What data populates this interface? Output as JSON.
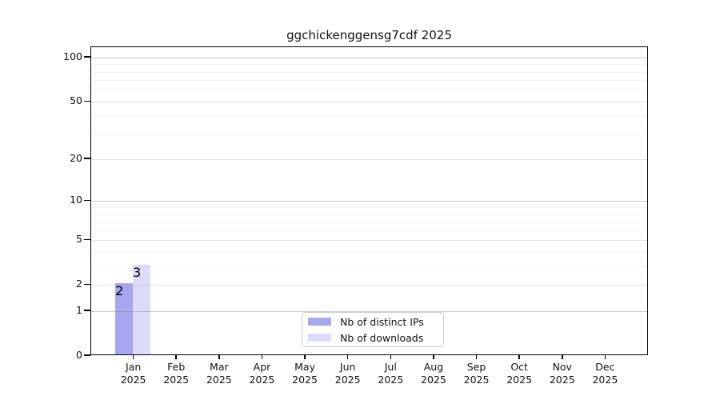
{
  "chart_data": {
    "type": "bar",
    "title": "ggchickenggensg7cdf 2025",
    "categories": [
      "Jan",
      "Feb",
      "Mar",
      "Apr",
      "May",
      "Jun",
      "Jul",
      "Aug",
      "Sep",
      "Oct",
      "Nov",
      "Dec"
    ],
    "x_sublabel": "2025",
    "series": [
      {
        "name": "Nb of distinct IPs",
        "color": "#a6a6f1",
        "values": [
          2,
          0,
          0,
          0,
          0,
          0,
          0,
          0,
          0,
          0,
          0,
          0
        ]
      },
      {
        "name": "Nb of downloads",
        "color": "#dcdcf8",
        "values": [
          3,
          0,
          0,
          0,
          0,
          0,
          0,
          0,
          0,
          0,
          0,
          0
        ]
      }
    ],
    "y_axis": {
      "scale": "log10(1+y)",
      "ticks": [
        0,
        1,
        2,
        5,
        10,
        20,
        50,
        100
      ],
      "strong_gridlines": [
        1,
        10,
        100
      ],
      "medium_gridlines": [
        2,
        5,
        20,
        50
      ],
      "minor_gridlines": [
        3,
        4,
        6,
        7,
        8,
        9,
        30,
        40,
        60,
        70,
        80,
        90
      ],
      "max": 118
    },
    "legend": {
      "position": "bottom-center-inside"
    },
    "grid": true
  },
  "colors": {
    "background": "#ffffff",
    "axis": "#000000",
    "text": "#111111",
    "legend_border": "#cbcbcb"
  }
}
